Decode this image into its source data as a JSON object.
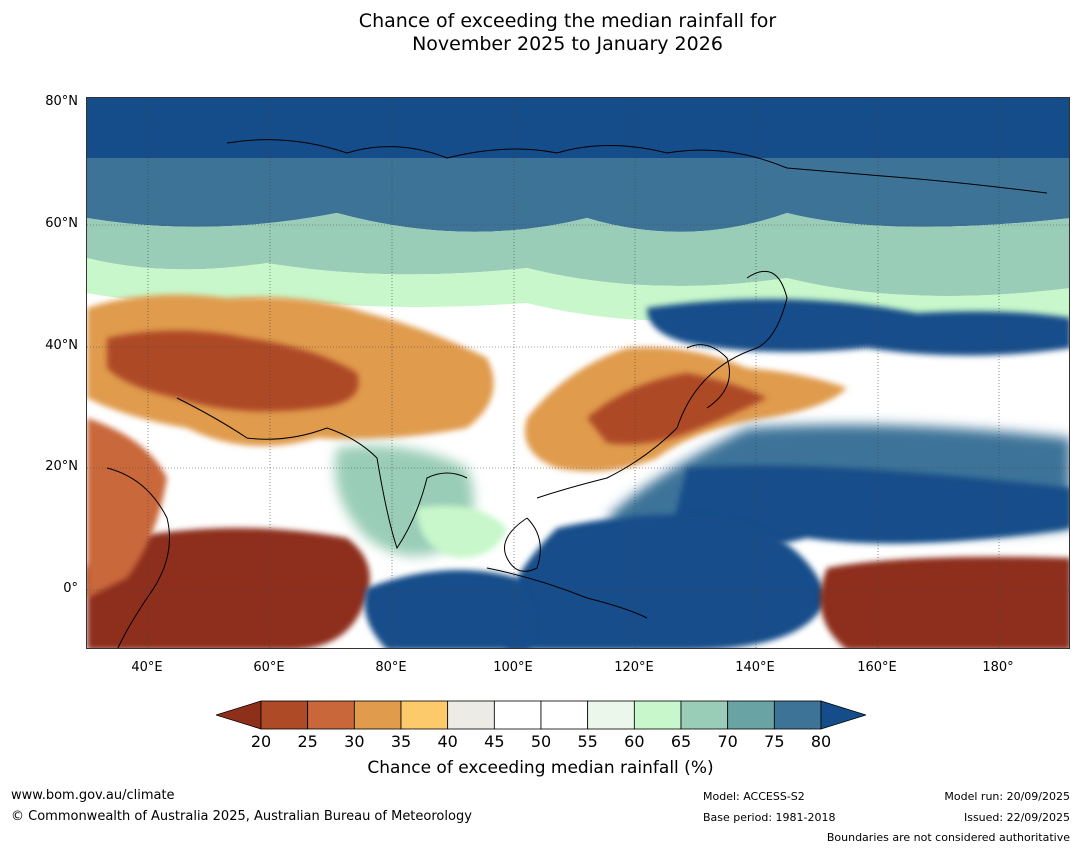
{
  "title_line1": "Chance of exceeding the median rainfall for",
  "title_line2": "November 2025 to January 2026",
  "map": {
    "lat_labels": [
      "80°N",
      "60°N",
      "40°N",
      "20°N",
      "0°"
    ],
    "lon_labels": [
      "40°E",
      "60°E",
      "80°E",
      "100°E",
      "120°E",
      "140°E",
      "160°E",
      "180°"
    ]
  },
  "colorbar": {
    "ticks": [
      "20",
      "25",
      "30",
      "35",
      "40",
      "45",
      "50",
      "55",
      "60",
      "65",
      "70",
      "75",
      "80"
    ],
    "colors": [
      "#8e2f1a",
      "#ae4a26",
      "#c9673a",
      "#e09b4d",
      "#fcc96b",
      "#ecebe5",
      "#ffffff",
      "#ffffff",
      "#eaf7ea",
      "#c8f7cb",
      "#9acdb7",
      "#6aa3a4",
      "#3e7398",
      "#154d8a"
    ],
    "label": "Chance of exceeding median rainfall (%)"
  },
  "footer": {
    "website": "www.bom.gov.au/climate",
    "copyright": "© Commonwealth of Australia 2025, Australian Bureau of Meteorology",
    "model": "Model: ACCESS-S2",
    "base_period": "Base period: 1981-2018",
    "model_run": "Model run: 20/09/2025",
    "issued": "Issued: 22/09/2025",
    "disclaimer": "Boundaries are not considered authoritative"
  }
}
